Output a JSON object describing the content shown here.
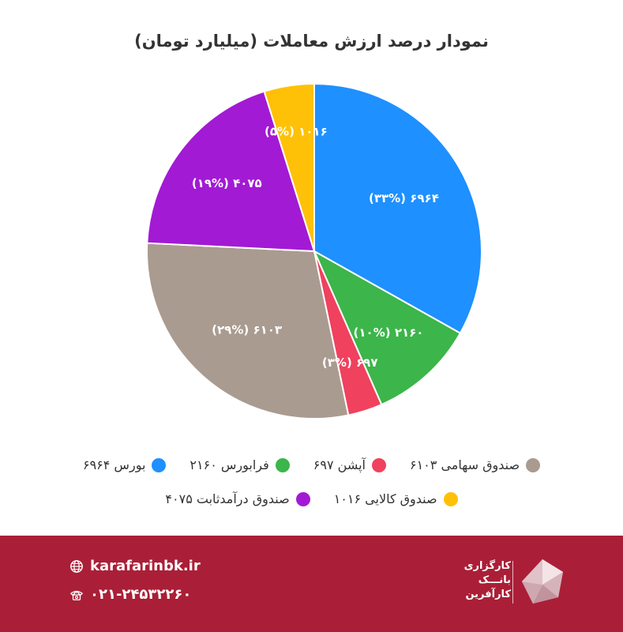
{
  "page": {
    "title": "نمودار درصد ارزش معاملات (میلیارد تومان)"
  },
  "chart_data": {
    "type": "pie",
    "title": "نمودار درصد ارزش معاملات (میلیارد تومان)",
    "slices": [
      {
        "name": "بورس",
        "value": 6964,
        "percent": 33,
        "color": "#1e90ff",
        "label": "۶۹۶۴ (۳۳%)",
        "legend": "بورس ۶۹۶۴"
      },
      {
        "name": "فرابورس",
        "value": 2160,
        "percent": 10,
        "color": "#3cb54a",
        "label": "۲۱۶۰ (۱۰%)",
        "legend": "فرابورس ۲۱۶۰"
      },
      {
        "name": "آپشن",
        "value": 697,
        "percent": 3,
        "color": "#f0415e",
        "label": "۶۹۷ (۳%)",
        "legend": "آپشن ۶۹۷"
      },
      {
        "name": "صندوق سهامی",
        "value": 6103,
        "percent": 29,
        "color": "#aa9b90",
        "label": "۶۱۰۳ (۲۹%)",
        "legend": "صندوق سهامی ۶۱۰۳"
      },
      {
        "name": "صندوق درآمدثابت",
        "value": 4075,
        "percent": 19,
        "color": "#a21ad4",
        "label": "۴۰۷۵ (۱۹%)",
        "legend": "صندوق درآمدثابت ۴۰۷۵"
      },
      {
        "name": "صندوق کالایی",
        "value": 1016,
        "percent": 5,
        "color": "#ffc107",
        "label": "۱۰۱۶ (۵%)",
        "legend": "صندوق کالایی ۱۰۱۶"
      }
    ],
    "legend_placement": "bottom"
  },
  "footer": {
    "website": "karafarinbk.ir",
    "phone": "۰۲۱-۲۴۵۳۲۲۶۰",
    "brand_lines": [
      "کارگزاری",
      "بانـــک",
      "کارآفرین"
    ],
    "background_color": "#aa1f37"
  }
}
